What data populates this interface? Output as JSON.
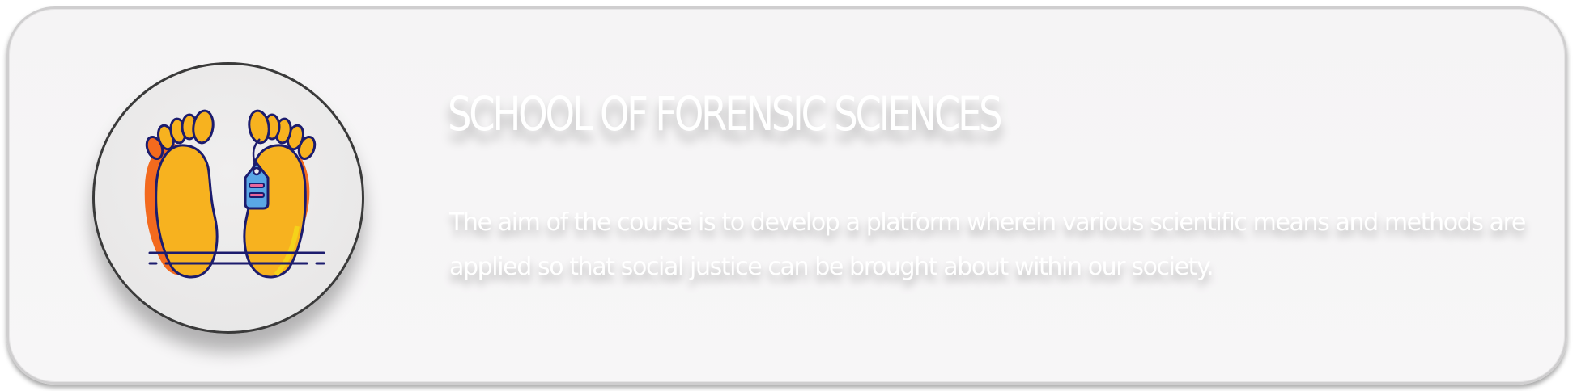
{
  "card": {
    "title": "SCHOOL OF FORENSIC SCIENCES",
    "description": "The aim of the course is to develop a platform wherein various scientific means and methods are applied so that social justice can be brought about within our society."
  },
  "icon": {
    "name": "toe-tag-feet-icon"
  },
  "colors": {
    "outline": "#1c1c6e",
    "foot": "#f7b21f",
    "foot_shade": "#f36a1e",
    "tag": "#5aa7e6",
    "tag_lines": "#e8679b",
    "card_bg": "#f6f5f6",
    "text": "#ffffff"
  }
}
